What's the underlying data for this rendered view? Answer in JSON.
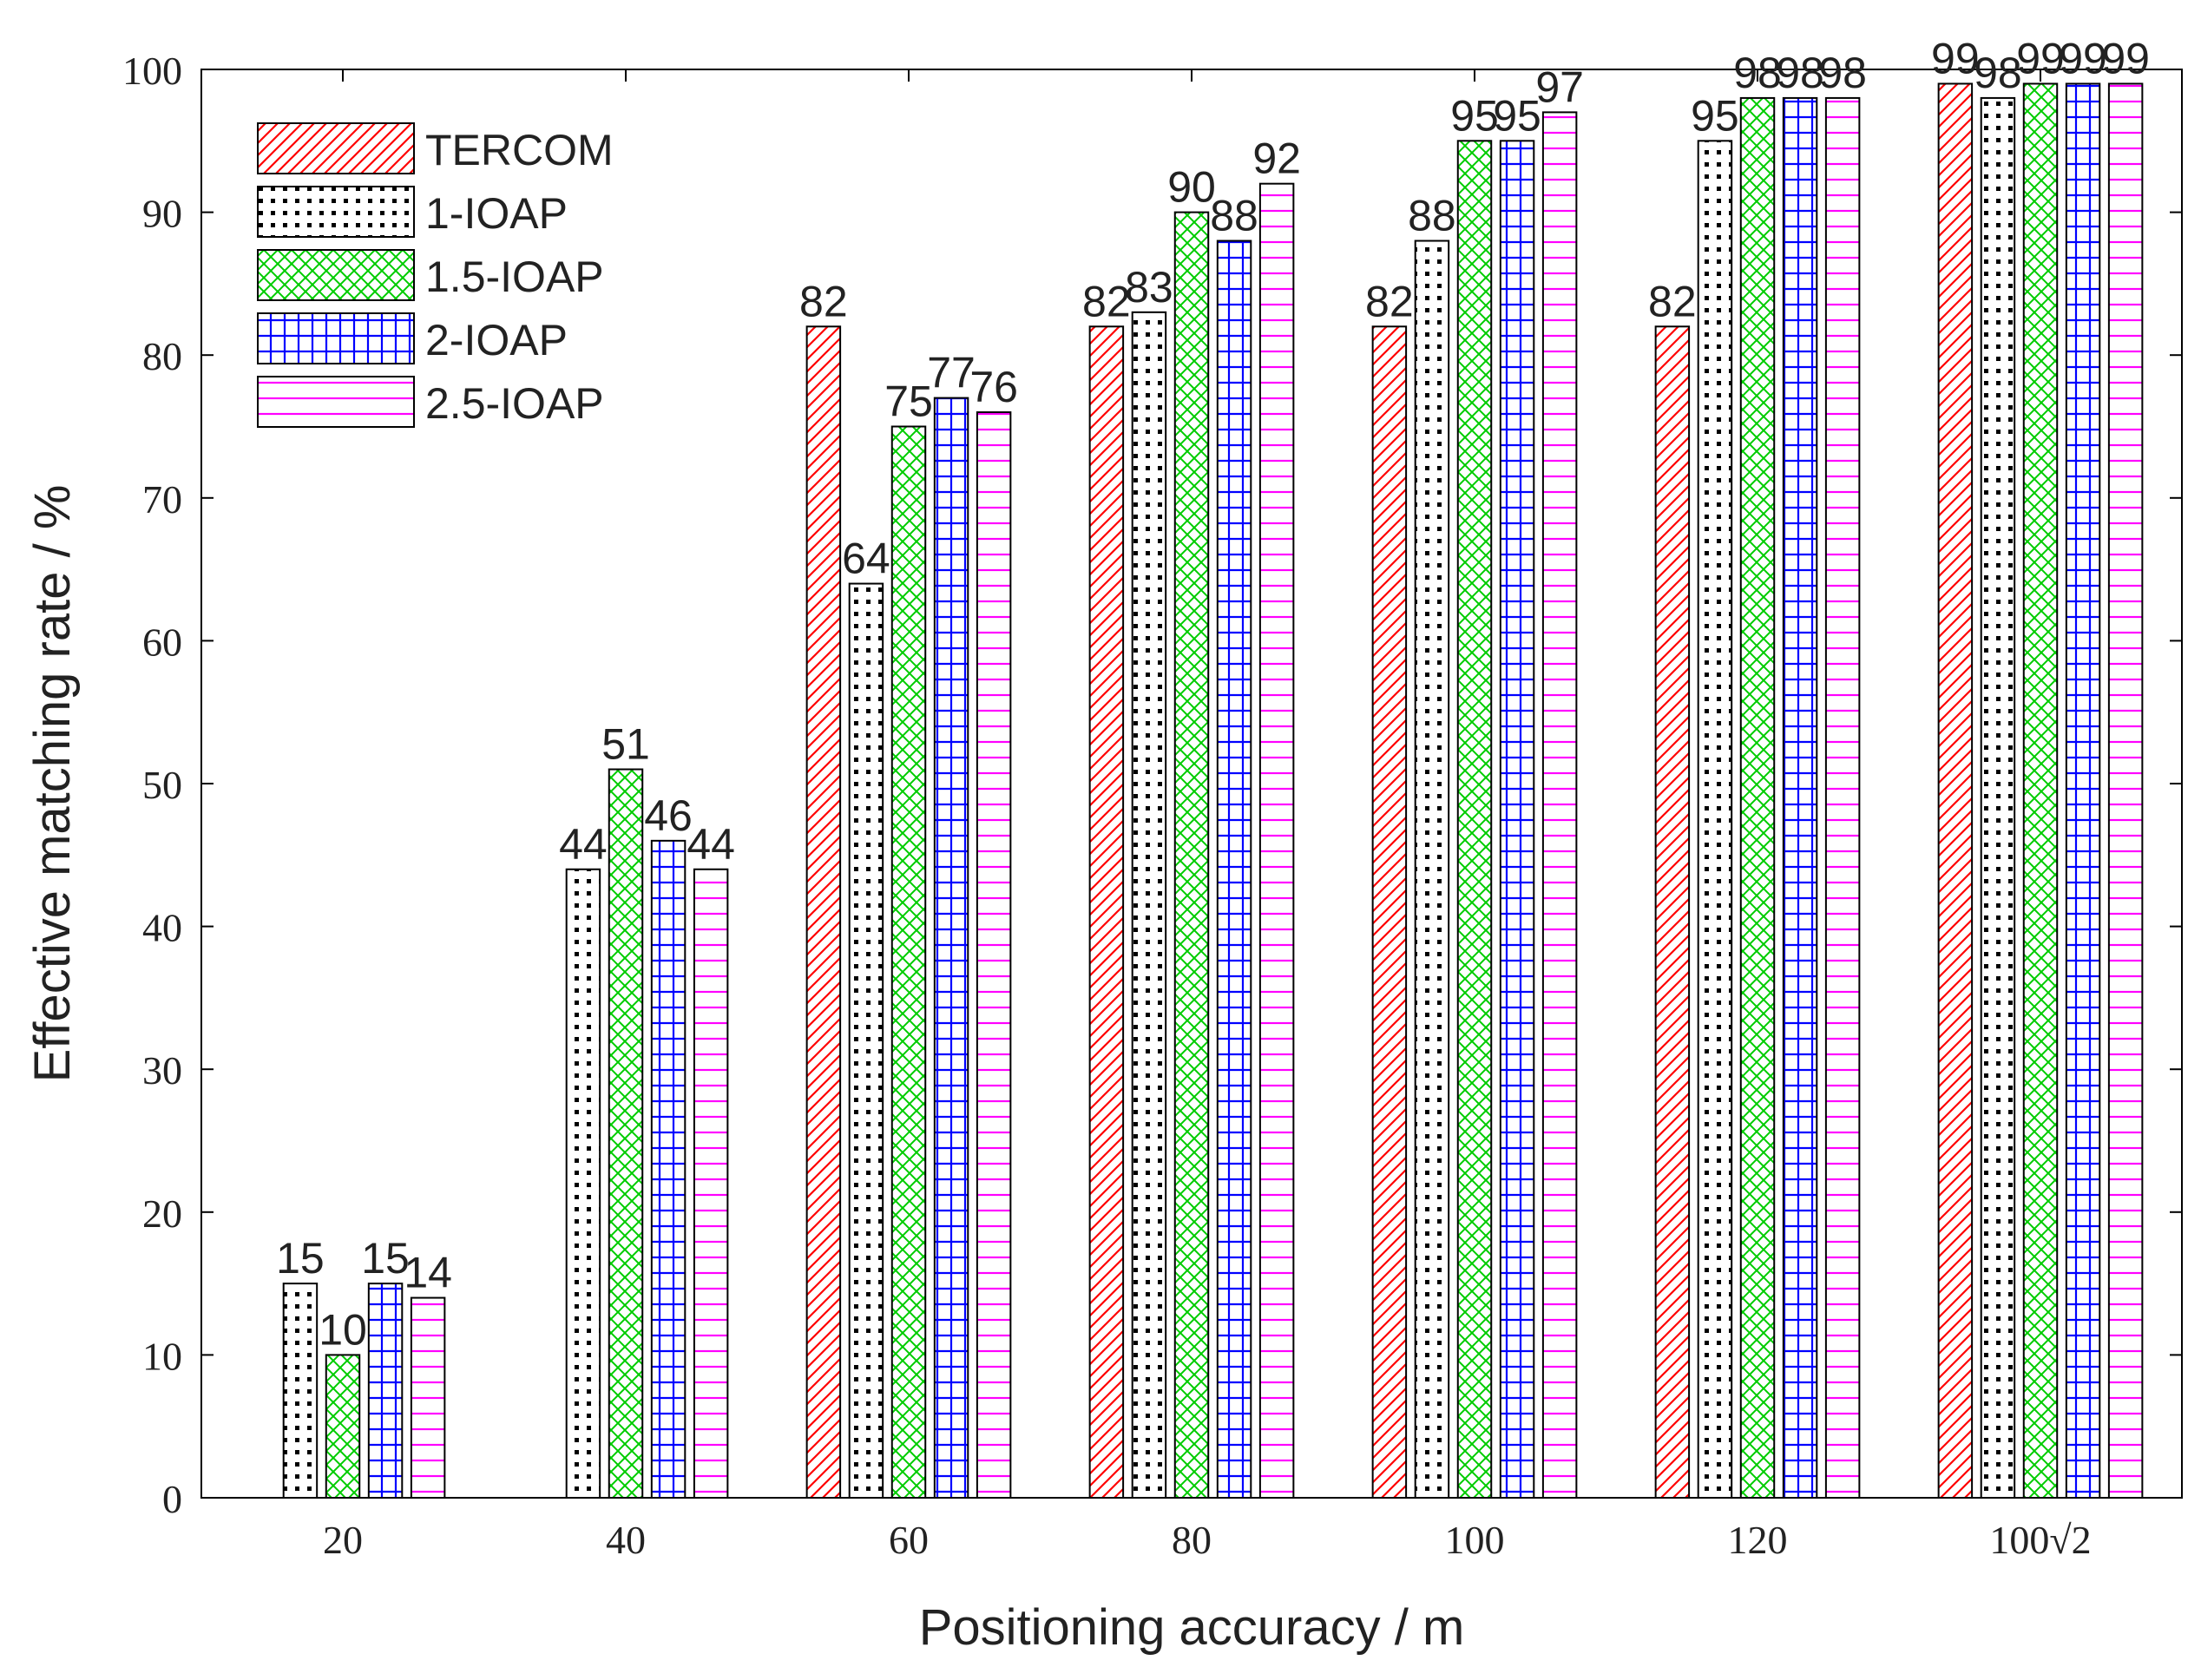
{
  "chart_data": {
    "type": "bar",
    "title": "",
    "xlabel": "Positioning accuracy / m",
    "ylabel": "Effective matching rate / %",
    "ylim": [
      0,
      100
    ],
    "yticks": [
      "0",
      "10",
      "20",
      "30",
      "40",
      "50",
      "60",
      "70",
      "80",
      "90",
      "100"
    ],
    "categories": [
      "20",
      "40",
      "60",
      "80",
      "100",
      "120",
      "100√2"
    ],
    "legend_position": "top-left",
    "series": [
      {
        "name": "TERCOM",
        "pattern": "diagonal-hatch",
        "color": "#ff0000",
        "values": [
          null,
          null,
          82,
          82,
          82,
          82,
          99
        ]
      },
      {
        "name": "1-IOAP",
        "pattern": "dots",
        "color": "#000000",
        "values": [
          15,
          44,
          64,
          83,
          88,
          95,
          98
        ]
      },
      {
        "name": "1.5-IOAP",
        "pattern": "cross-hatch",
        "color": "#00cc00",
        "values": [
          10,
          51,
          75,
          90,
          95,
          98,
          99
        ]
      },
      {
        "name": "2-IOAP",
        "pattern": "grid",
        "color": "#0000ff",
        "values": [
          15,
          46,
          77,
          88,
          95,
          98,
          99
        ]
      },
      {
        "name": "2.5-IOAP",
        "pattern": "horizontal-lines",
        "color": "#ff00ff",
        "values": [
          14,
          44,
          76,
          92,
          97,
          98,
          99
        ]
      }
    ]
  }
}
